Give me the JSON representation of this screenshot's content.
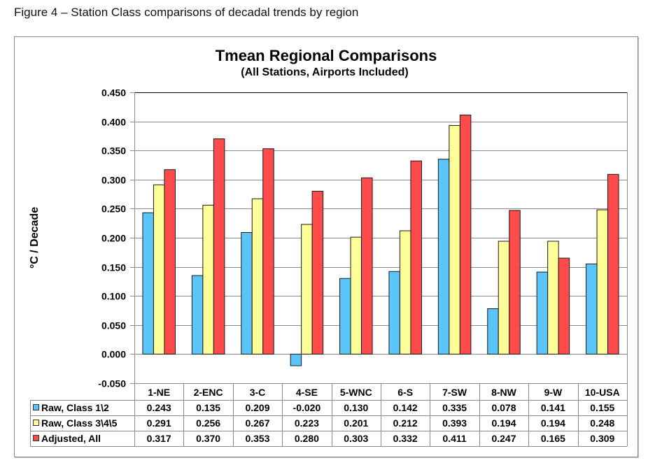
{
  "caption": "Figure 4 – Station Class comparisons of decadal trends by region",
  "chart_data": {
    "type": "bar",
    "title": "Tmean Regional Comparisons",
    "subtitle": "(All Stations, Airports Included)",
    "xlabel": "",
    "ylabel": "°C / Decade",
    "ylim": [
      -0.05,
      0.45
    ],
    "yticks": [
      -0.05,
      0.0,
      0.05,
      0.1,
      0.15,
      0.2,
      0.25,
      0.3,
      0.35,
      0.4,
      0.45
    ],
    "ytick_labels": [
      "-0.050",
      "0.000",
      "0.050",
      "0.100",
      "0.150",
      "0.200",
      "0.250",
      "0.300",
      "0.350",
      "0.400",
      "0.450"
    ],
    "grid": true,
    "legend": "data-table-bottom",
    "categories": [
      "1-NE",
      "2-ENC",
      "3-C",
      "4-SE",
      "5-WNC",
      "6-S",
      "7-SW",
      "8-NW",
      "9-W",
      "10-USA"
    ],
    "series": [
      {
        "name": "Raw, Class 1\\2",
        "color": "#5bc5f9",
        "values": [
          0.243,
          0.135,
          0.209,
          -0.02,
          0.13,
          0.142,
          0.335,
          0.078,
          0.141,
          0.155
        ],
        "labels": [
          "0.243",
          "0.135",
          "0.209",
          "-0.020",
          "0.130",
          "0.142",
          "0.335",
          "0.078",
          "0.141",
          "0.155"
        ]
      },
      {
        "name": "Raw, Class 3\\4\\5",
        "color": "#ffff99",
        "values": [
          0.291,
          0.256,
          0.267,
          0.223,
          0.201,
          0.212,
          0.393,
          0.194,
          0.194,
          0.248
        ],
        "labels": [
          "0.291",
          "0.256",
          "0.267",
          "0.223",
          "0.201",
          "0.212",
          "0.393",
          "0.194",
          "0.194",
          "0.248"
        ]
      },
      {
        "name": "Adjusted, All",
        "color": "#ff4b4b",
        "values": [
          0.317,
          0.37,
          0.353,
          0.28,
          0.303,
          0.332,
          0.411,
          0.247,
          0.165,
          0.309
        ],
        "labels": [
          "0.317",
          "0.370",
          "0.353",
          "0.280",
          "0.303",
          "0.332",
          "0.411",
          "0.247",
          "0.165",
          "0.309"
        ]
      }
    ]
  }
}
